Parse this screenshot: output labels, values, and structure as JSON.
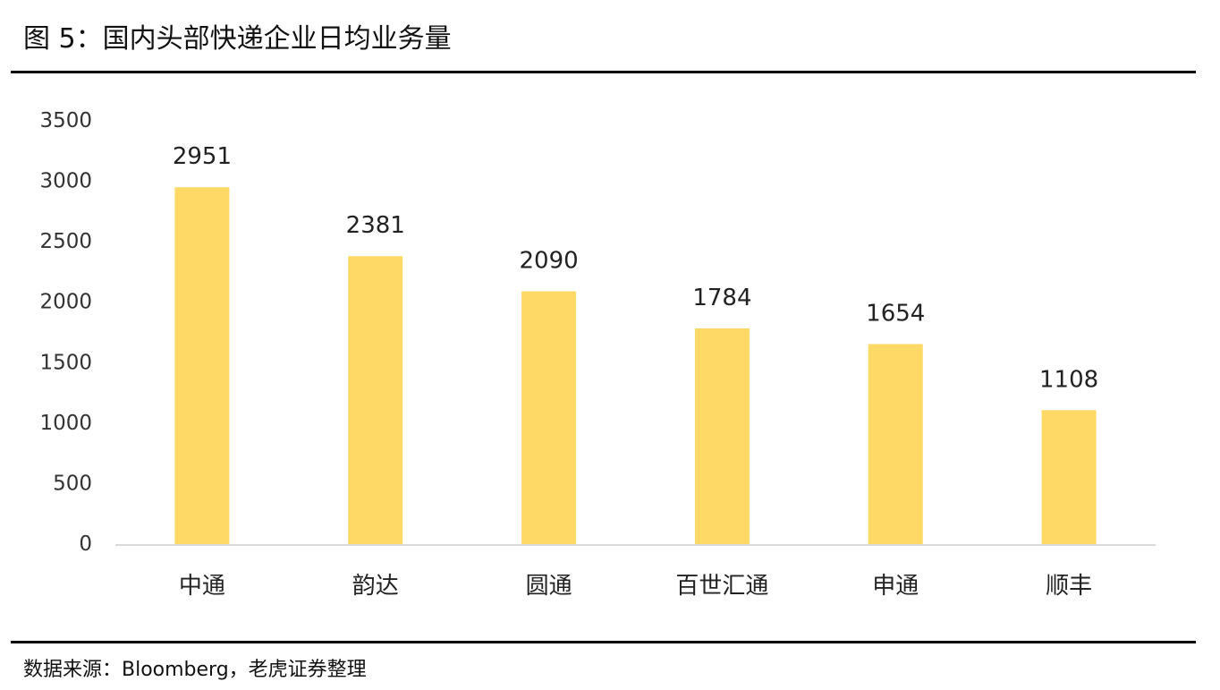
{
  "header": {
    "title": "图 5：国内头部快递企业日均业务量"
  },
  "footer": {
    "source": "数据来源：Bloomberg，老虎证券整理"
  },
  "colors": {
    "bar": "#FFD966",
    "axis": "#D9D9D9",
    "rule": "#000000"
  },
  "chart_data": {
    "type": "bar",
    "title": "图 5：国内头部快递企业日均业务量",
    "xlabel": "",
    "ylabel": "",
    "categories": [
      "中通",
      "韵达",
      "圆通",
      "百世汇通",
      "申通",
      "顺丰"
    ],
    "values": [
      2951,
      2381,
      2090,
      1784,
      1654,
      1108
    ],
    "ylim": [
      0,
      3500
    ],
    "yticks": [
      0,
      500,
      1000,
      1500,
      2000,
      2500,
      3000,
      3500
    ],
    "grid": false,
    "legend": "none",
    "data_labels": true
  }
}
